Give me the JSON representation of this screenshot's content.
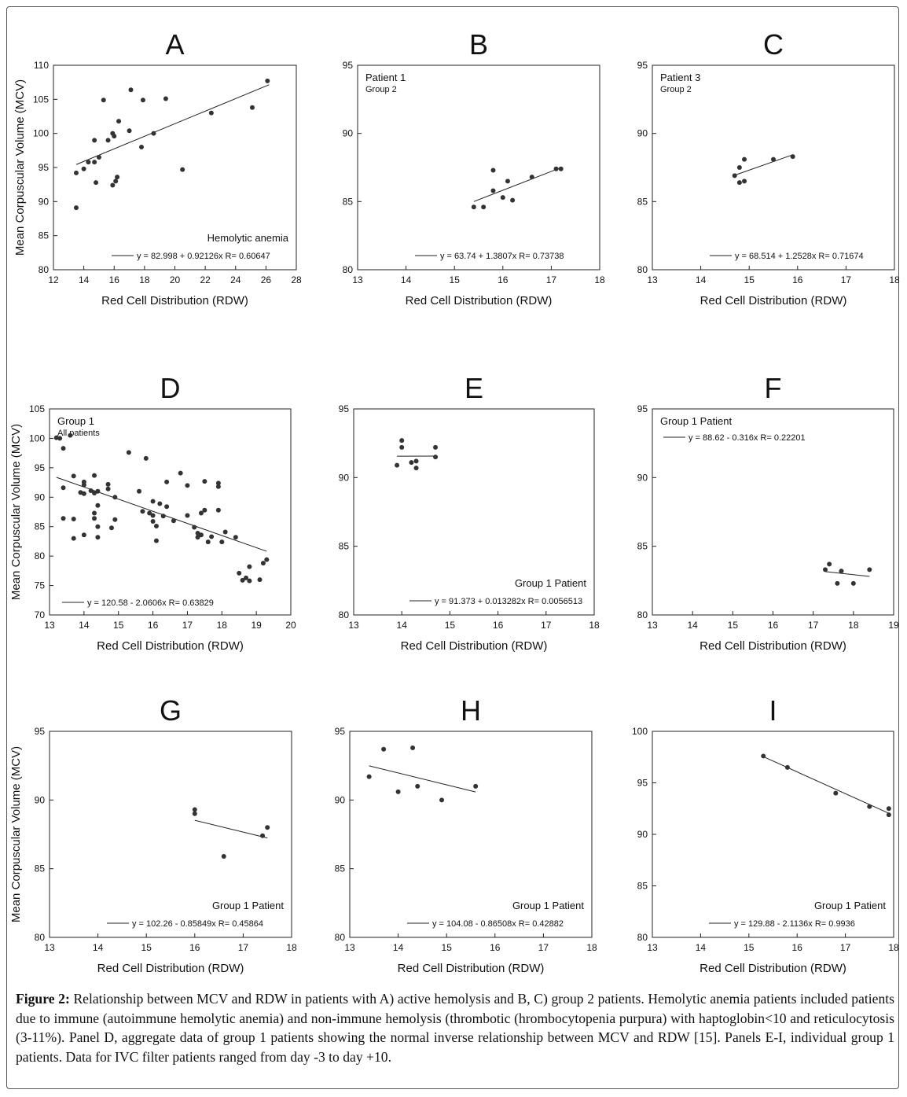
{
  "figure": {
    "caption_label": "Figure 2:",
    "caption_text": " Relationship between MCV and RDW in patients with A) active hemolysis and B, C) group 2 patients. Hemolytic anemia patients included patients due to immune (autoimmune hemolytic anemia) and non-immune hemolysis (thrombotic (hrombocytopenia purpura) with haptoglobin<10 and reticulocytosis (3-11%). Panel D, aggregate data of group 1 patients showing the normal inverse relationship between MCV and RDW [15]. Panels E-I, individual group 1 patients. Data for IVC filter patients ranged from day -3 to day +10."
  },
  "chart_data": [
    {
      "type": "scatter",
      "panel": "A",
      "title": "A",
      "xlabel": "Red Cell Distribution (RDW)",
      "ylabel": "Mean Corpuscular Volume (MCV)",
      "xlim": [
        12,
        28
      ],
      "ylim": [
        80,
        110
      ],
      "xticks": [
        "12",
        "14",
        "16",
        "18",
        "20",
        "22",
        "24",
        "26",
        "28"
      ],
      "yticks": [
        "80",
        "85",
        "90",
        "95",
        "100",
        "105",
        "110"
      ],
      "annotation": [
        "Hemolytic anemia"
      ],
      "equation": "y = 82.998 + 0.92126x   R= 0.60647",
      "fit": {
        "intercept": 82.998,
        "slope": 0.92126,
        "x_range": [
          13.5,
          26.2
        ]
      },
      "points": [
        [
          13.5,
          94.2
        ],
        [
          13.5,
          89.1
        ],
        [
          14.0,
          94.8
        ],
        [
          14.3,
          95.8
        ],
        [
          14.7,
          99.0
        ],
        [
          14.7,
          95.8
        ],
        [
          14.8,
          92.8
        ],
        [
          15.0,
          96.5
        ],
        [
          15.3,
          104.9
        ],
        [
          15.6,
          99.0
        ],
        [
          15.9,
          100.0
        ],
        [
          16.0,
          99.6
        ],
        [
          15.9,
          92.4
        ],
        [
          16.1,
          93.0
        ],
        [
          16.2,
          93.6
        ],
        [
          16.3,
          101.8
        ],
        [
          17.0,
          100.4
        ],
        [
          17.1,
          106.4
        ],
        [
          17.8,
          98.0
        ],
        [
          17.9,
          104.9
        ],
        [
          18.6,
          100.0
        ],
        [
          19.4,
          105.1
        ],
        [
          20.5,
          94.7
        ],
        [
          22.4,
          103.0
        ],
        [
          25.1,
          103.8
        ],
        [
          26.1,
          107.7
        ]
      ]
    },
    {
      "type": "scatter",
      "panel": "B",
      "title": "B",
      "xlabel": "Red Cell Distribution (RDW)",
      "ylabel": "",
      "xlim": [
        13,
        18
      ],
      "ylim": [
        80,
        95
      ],
      "xticks": [
        "13",
        "14",
        "15",
        "16",
        "17",
        "18"
      ],
      "yticks": [
        "80",
        "85",
        "90",
        "95"
      ],
      "annotation": [
        "Patient 1",
        "Group 2"
      ],
      "equation": "y = 63.74 + 1.3807x   R= 0.73738",
      "fit": {
        "intercept": 63.74,
        "slope": 1.3807,
        "x_range": [
          15.4,
          17.2
        ]
      },
      "points": [
        [
          15.4,
          84.6
        ],
        [
          15.6,
          84.6
        ],
        [
          15.8,
          87.3
        ],
        [
          15.8,
          85.8
        ],
        [
          16.0,
          85.3
        ],
        [
          16.1,
          86.5
        ],
        [
          16.2,
          85.1
        ],
        [
          16.6,
          86.8
        ],
        [
          17.1,
          87.4
        ],
        [
          17.2,
          87.4
        ]
      ]
    },
    {
      "type": "scatter",
      "panel": "C",
      "title": "C",
      "xlabel": "Red Cell Distribution (RDW)",
      "ylabel": "",
      "xlim": [
        13,
        18
      ],
      "ylim": [
        80,
        95
      ],
      "xticks": [
        "13",
        "14",
        "15",
        "16",
        "17",
        "18"
      ],
      "yticks": [
        "80",
        "85",
        "90",
        "95"
      ],
      "annotation": [
        "Patient 3",
        "Group 2"
      ],
      "equation": "y = 68.514 + 1.2528x   R= 0.71674",
      "fit": {
        "intercept": 68.514,
        "slope": 1.2528,
        "x_range": [
          14.7,
          15.9
        ]
      },
      "points": [
        [
          14.7,
          86.9
        ],
        [
          14.8,
          87.5
        ],
        [
          14.8,
          86.4
        ],
        [
          14.9,
          86.5
        ],
        [
          14.9,
          88.1
        ],
        [
          15.5,
          88.1
        ],
        [
          15.9,
          88.3
        ]
      ]
    },
    {
      "type": "scatter",
      "panel": "D",
      "title": "D",
      "xlabel": "Red Cell Distribution (RDW)",
      "ylabel": "Mean Corpuscular Volume (MCV)",
      "xlim": [
        13,
        20
      ],
      "ylim": [
        70,
        105
      ],
      "xticks": [
        "13",
        "14",
        "15",
        "16",
        "17",
        "18",
        "19",
        "20"
      ],
      "yticks": [
        "70",
        "75",
        "80",
        "85",
        "90",
        "95",
        "100",
        "105"
      ],
      "annotation": [
        "Group 1",
        "All patients"
      ],
      "equation": "y = 120.58 - 2.0606x   R= 0.63829",
      "fit": {
        "intercept": 120.58,
        "slope": -2.0606,
        "x_range": [
          13.2,
          19.3
        ]
      },
      "points": [
        [
          13.2,
          100.1
        ],
        [
          13.3,
          100.0
        ],
        [
          13.6,
          100.5
        ],
        [
          13.4,
          98.3
        ],
        [
          13.4,
          91.6
        ],
        [
          13.4,
          86.4
        ],
        [
          13.7,
          93.6
        ],
        [
          13.7,
          86.3
        ],
        [
          13.7,
          83.0
        ],
        [
          13.9,
          90.8
        ],
        [
          14.0,
          92.6
        ],
        [
          14.0,
          92.1
        ],
        [
          14.0,
          90.6
        ],
        [
          14.0,
          83.6
        ],
        [
          14.3,
          93.7
        ],
        [
          14.2,
          91.1
        ],
        [
          14.3,
          90.7
        ],
        [
          14.4,
          91.0
        ],
        [
          14.3,
          87.3
        ],
        [
          14.3,
          86.4
        ],
        [
          14.4,
          85.0
        ],
        [
          14.4,
          83.2
        ],
        [
          14.4,
          88.6
        ],
        [
          14.7,
          92.2
        ],
        [
          14.7,
          91.4
        ],
        [
          14.8,
          84.8
        ],
        [
          14.9,
          90.0
        ],
        [
          14.9,
          86.2
        ],
        [
          15.3,
          97.6
        ],
        [
          15.6,
          91.0
        ],
        [
          15.7,
          87.6
        ],
        [
          15.8,
          96.6
        ],
        [
          15.9,
          87.3
        ],
        [
          16.0,
          89.3
        ],
        [
          16.0,
          86.9
        ],
        [
          16.0,
          85.9
        ],
        [
          16.1,
          85.1
        ],
        [
          16.1,
          82.6
        ],
        [
          16.2,
          88.9
        ],
        [
          16.3,
          86.8
        ],
        [
          16.4,
          92.6
        ],
        [
          16.4,
          88.4
        ],
        [
          16.6,
          86.0
        ],
        [
          16.8,
          94.1
        ],
        [
          17.0,
          92.0
        ],
        [
          17.0,
          86.9
        ],
        [
          17.2,
          84.9
        ],
        [
          17.3,
          83.2
        ],
        [
          17.3,
          83.9
        ],
        [
          17.4,
          87.3
        ],
        [
          17.4,
          83.6
        ],
        [
          17.5,
          92.7
        ],
        [
          17.5,
          87.8
        ],
        [
          17.6,
          82.4
        ],
        [
          17.7,
          83.3
        ],
        [
          17.9,
          92.4
        ],
        [
          17.9,
          91.8
        ],
        [
          17.9,
          87.8
        ],
        [
          18.0,
          82.4
        ],
        [
          18.1,
          84.1
        ],
        [
          18.4,
          83.2
        ],
        [
          18.5,
          77.1
        ],
        [
          18.6,
          75.9
        ],
        [
          18.7,
          76.3
        ],
        [
          18.8,
          75.8
        ],
        [
          18.8,
          78.2
        ],
        [
          19.1,
          76.0
        ],
        [
          19.2,
          78.8
        ],
        [
          19.3,
          79.4
        ]
      ]
    },
    {
      "type": "scatter",
      "panel": "E",
      "title": "E",
      "xlabel": "Red Cell Distribution (RDW)",
      "ylabel": "",
      "xlim": [
        13,
        18
      ],
      "ylim": [
        80,
        95
      ],
      "xticks": [
        "13",
        "14",
        "15",
        "16",
        "17",
        "18"
      ],
      "yticks": [
        "80",
        "85",
        "90",
        "95"
      ],
      "annotation": [
        "Group 1 Patient"
      ],
      "equation": "y = 91.373 + 0.013282x   R= 0.0056513",
      "fit": {
        "intercept": 91.373,
        "slope": 0.013282,
        "x_range": [
          13.9,
          14.7
        ]
      },
      "points": [
        [
          13.9,
          90.9
        ],
        [
          14.0,
          92.7
        ],
        [
          14.0,
          92.2
        ],
        [
          14.2,
          91.1
        ],
        [
          14.3,
          90.7
        ],
        [
          14.3,
          91.2
        ],
        [
          14.7,
          92.2
        ],
        [
          14.7,
          91.5
        ]
      ]
    },
    {
      "type": "scatter",
      "panel": "F",
      "title": "F",
      "xlabel": "Red Cell Distribution (RDW)",
      "ylabel": "",
      "xlim": [
        13,
        19
      ],
      "ylim": [
        80,
        95
      ],
      "xticks": [
        "13",
        "14",
        "15",
        "16",
        "17",
        "18",
        "19"
      ],
      "yticks": [
        "80",
        "85",
        "90",
        "95"
      ],
      "annotation": [
        "Group 1 Patient"
      ],
      "equation": "y = 88.62 - 0.316x   R= 0.22201",
      "fit": {
        "intercept": 88.62,
        "slope": -0.316,
        "x_range": [
          17.3,
          18.4
        ]
      },
      "points": [
        [
          17.3,
          83.3
        ],
        [
          17.4,
          83.7
        ],
        [
          17.6,
          82.3
        ],
        [
          17.7,
          83.2
        ],
        [
          18.0,
          82.3
        ],
        [
          18.4,
          83.3
        ]
      ]
    },
    {
      "type": "scatter",
      "panel": "G",
      "title": "G",
      "xlabel": "Red Cell Distribution (RDW)",
      "ylabel": "Mean Corpuscular Volume (MCV)",
      "xlim": [
        13,
        18
      ],
      "ylim": [
        80,
        95
      ],
      "xticks": [
        "13",
        "14",
        "15",
        "16",
        "17",
        "18"
      ],
      "yticks": [
        "80",
        "85",
        "90",
        "95"
      ],
      "annotation": [
        "Group 1 Patient"
      ],
      "equation": "y = 102.26 - 0.85849x   R= 0.45864",
      "fit": {
        "intercept": 102.26,
        "slope": -0.85849,
        "x_range": [
          16.0,
          17.5
        ]
      },
      "points": [
        [
          16.0,
          89.3
        ],
        [
          16.0,
          89.0
        ],
        [
          16.6,
          85.9
        ],
        [
          17.4,
          87.4
        ],
        [
          17.5,
          88.0
        ]
      ]
    },
    {
      "type": "scatter",
      "panel": "H",
      "title": "H",
      "xlabel": "Red Cell Distribution (RDW)",
      "ylabel": "",
      "xlim": [
        13,
        18
      ],
      "ylim": [
        80,
        95
      ],
      "xticks": [
        "13",
        "14",
        "15",
        "16",
        "17",
        "18"
      ],
      "yticks": [
        "80",
        "85",
        "90",
        "95"
      ],
      "annotation": [
        "Group 1 Patient"
      ],
      "equation": "y = 104.08 - 0.86508x   R= 0.42882",
      "fit": {
        "intercept": 104.08,
        "slope": -0.86508,
        "x_range": [
          13.4,
          15.6
        ]
      },
      "points": [
        [
          13.4,
          91.7
        ],
        [
          13.7,
          93.7
        ],
        [
          14.0,
          90.6
        ],
        [
          14.3,
          93.8
        ],
        [
          14.4,
          91.0
        ],
        [
          14.9,
          90.0
        ],
        [
          15.6,
          91.0
        ]
      ]
    },
    {
      "type": "scatter",
      "panel": "I",
      "title": "I",
      "xlabel": "Red Cell Distribution (RDW)",
      "ylabel": "",
      "xlim": [
        13,
        18
      ],
      "ylim": [
        80,
        100
      ],
      "xticks": [
        "13",
        "14",
        "15",
        "16",
        "17",
        "18"
      ],
      "yticks": [
        "80",
        "85",
        "90",
        "95",
        "100"
      ],
      "annotation": [
        "Group 1 Patient"
      ],
      "equation": "y = 129.88 - 2.1136x   R= 0.9936",
      "fit": {
        "intercept": 129.88,
        "slope": -2.1136,
        "x_range": [
          15.3,
          17.9
        ]
      },
      "points": [
        [
          15.3,
          97.6
        ],
        [
          15.8,
          96.5
        ],
        [
          16.8,
          94.0
        ],
        [
          17.5,
          92.7
        ],
        [
          17.9,
          92.5
        ],
        [
          17.9,
          91.9
        ]
      ]
    }
  ]
}
